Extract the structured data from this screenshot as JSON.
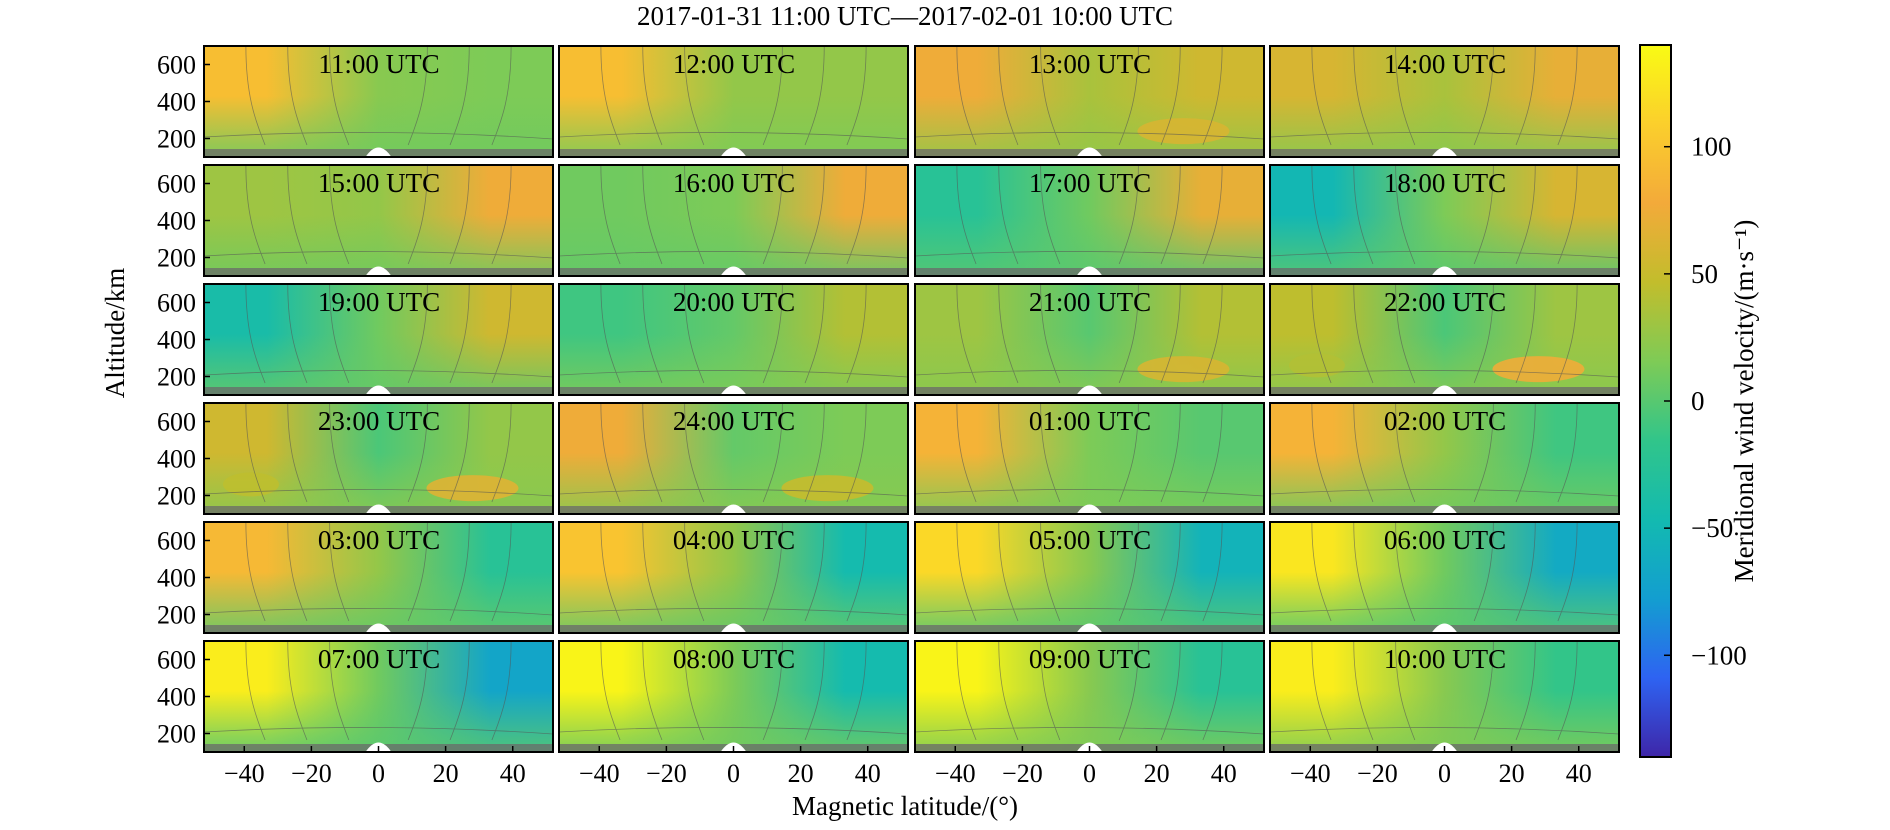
{
  "chart_data": {
    "type": "heatmap",
    "title": "2017-01-31 11:00 UTC—2017-02-01 10:00 UTC",
    "xlabel": "Magnetic latitude/(°)",
    "ylabel": "Altitude/km",
    "xticks": [
      "−40",
      "−20",
      "0",
      "20",
      "40"
    ],
    "yticks": [
      "200",
      "400",
      "600"
    ],
    "xlim": [
      -52,
      52
    ],
    "ylim": [
      100,
      700
    ],
    "x_tick_values": [
      -40,
      -20,
      0,
      20,
      40
    ],
    "y_tick_values": [
      200,
      400,
      600
    ],
    "grid": "4 columns x 6 rows",
    "colorbar": {
      "label": "Meridional wind velocity/(m·s⁻¹)",
      "ticks": [
        "100",
        "50",
        "0",
        "−50",
        "−100"
      ],
      "tick_values": [
        100,
        50,
        0,
        -50,
        -100
      ],
      "range": [
        -140,
        140
      ],
      "colors": [
        "#3e26a8",
        "#2e63f2",
        "#139ed0",
        "#13bab0",
        "#31c58a",
        "#7ecb56",
        "#c2bd2c",
        "#f3aa3a",
        "#fbcf2c",
        "#f9fb14"
      ]
    },
    "panels": [
      {
        "label": "11:00 UTC",
        "left": 95,
        "center": 20,
        "right": 15,
        "low": 10,
        "peak_hi": 0,
        "peak_lo": 0
      },
      {
        "label": "12:00 UTC",
        "left": 95,
        "center": 25,
        "right": 25,
        "low": 15,
        "peak_hi": 0,
        "peak_lo": 0
      },
      {
        "label": "13:00 UTC",
        "left": 75,
        "center": 35,
        "right": 55,
        "low": 25,
        "peak_hi": 0,
        "peak_lo": 60
      },
      {
        "label": "14:00 UTC",
        "left": 60,
        "center": 35,
        "right": 70,
        "low": 20,
        "peak_hi": 0,
        "peak_lo": 0
      },
      {
        "label": "15:00 UTC",
        "left": 30,
        "center": 25,
        "right": 75,
        "low": 10,
        "peak_hi": 0,
        "peak_lo": 0
      },
      {
        "label": "16:00 UTC",
        "left": 10,
        "center": 15,
        "right": 75,
        "low": 5,
        "peak_hi": 0,
        "peak_lo": 0
      },
      {
        "label": "17:00 UTC",
        "left": -25,
        "center": 10,
        "right": 70,
        "low": 0,
        "peak_hi": 0,
        "peak_lo": 0
      },
      {
        "label": "18:00 UTC",
        "left": -50,
        "center": 15,
        "right": 60,
        "low": 0,
        "peak_hi": 0,
        "peak_lo": 0
      },
      {
        "label": "19:00 UTC",
        "left": -40,
        "center": 10,
        "right": 55,
        "low": 5,
        "peak_hi": 0,
        "peak_lo": 0
      },
      {
        "label": "20:00 UTC",
        "left": -10,
        "center": 5,
        "right": 40,
        "low": 15,
        "peak_hi": 0,
        "peak_lo": 0
      },
      {
        "label": "21:00 UTC",
        "left": 30,
        "center": 0,
        "right": 40,
        "low": 20,
        "peak_hi": 0,
        "peak_lo": 60
      },
      {
        "label": "22:00 UTC",
        "left": 45,
        "center": -5,
        "right": 30,
        "low": 20,
        "peak_hi": 40,
        "peak_lo": 75
      },
      {
        "label": "23:00 UTC",
        "left": 55,
        "center": -5,
        "right": 25,
        "low": 20,
        "peak_hi": 45,
        "peak_lo": 65
      },
      {
        "label": "24:00 UTC",
        "left": 75,
        "center": 5,
        "right": 15,
        "low": 20,
        "peak_hi": 0,
        "peak_lo": 50
      },
      {
        "label": "01:00 UTC",
        "left": 85,
        "center": 15,
        "right": 0,
        "low": 15,
        "peak_hi": 0,
        "peak_lo": 0
      },
      {
        "label": "02:00 UTC",
        "left": 85,
        "center": 25,
        "right": -10,
        "low": 10,
        "peak_hi": 0,
        "peak_lo": 0
      },
      {
        "label": "03:00 UTC",
        "left": 90,
        "center": 25,
        "right": -25,
        "low": 5,
        "peak_hi": 0,
        "peak_lo": 0
      },
      {
        "label": "04:00 UTC",
        "left": 100,
        "center": 25,
        "right": -45,
        "low": 5,
        "peak_hi": 0,
        "peak_lo": 0
      },
      {
        "label": "05:00 UTC",
        "left": 115,
        "center": 20,
        "right": -55,
        "low": 0,
        "peak_hi": 0,
        "peak_lo": 0
      },
      {
        "label": "06:00 UTC",
        "left": 125,
        "center": 10,
        "right": -65,
        "low": 0,
        "peak_hi": 0,
        "peak_lo": 0
      },
      {
        "label": "07:00 UTC",
        "left": 130,
        "center": 10,
        "right": -70,
        "low": 0,
        "peak_hi": 0,
        "peak_lo": 0
      },
      {
        "label": "08:00 UTC",
        "left": 135,
        "center": 15,
        "right": -45,
        "low": 10,
        "peak_hi": 0,
        "peak_lo": 0
      },
      {
        "label": "09:00 UTC",
        "left": 135,
        "center": 20,
        "right": -25,
        "low": 15,
        "peak_hi": 0,
        "peak_lo": 0
      },
      {
        "label": "10:00 UTC",
        "left": 130,
        "center": 20,
        "right": -15,
        "low": 15,
        "peak_hi": 0,
        "peak_lo": 0
      }
    ]
  }
}
